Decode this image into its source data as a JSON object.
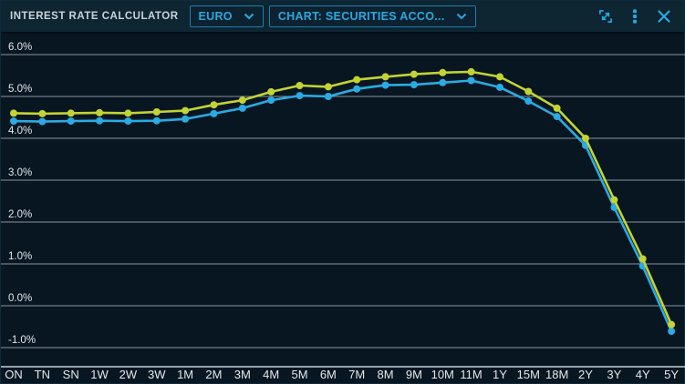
{
  "header": {
    "title": "INTEREST RATE CALCULATOR",
    "currency_dropdown": {
      "value": "EURO",
      "icon": "chevron-down-icon"
    },
    "chart_dropdown": {
      "value": "CHART: SECURITIES ACCO...",
      "icon": "chevron-down-icon"
    },
    "window_icons": [
      "expand-icon",
      "kebab-menu-icon",
      "close-icon"
    ]
  },
  "chart_data": {
    "type": "line",
    "title": "",
    "xlabel": "",
    "ylabel": "",
    "grid": "horizontal",
    "legend": "none",
    "categories": [
      "ON",
      "TN",
      "SN",
      "1W",
      "2W",
      "3W",
      "1M",
      "2M",
      "3M",
      "4M",
      "5M",
      "6M",
      "7M",
      "8M",
      "9M",
      "10M",
      "11M",
      "1Y",
      "15M",
      "18M",
      "2Y",
      "3Y",
      "4Y",
      "5Y"
    ],
    "yticks": {
      "values": [
        6.0,
        5.0,
        4.0,
        3.0,
        2.0,
        1.0,
        0.0,
        -1.0
      ],
      "labels": [
        "6.0%",
        "5.0%",
        "4.0%",
        "3.0%",
        "2.0%",
        "1.0%",
        "0.0%",
        "-1.0%"
      ]
    },
    "ylim": [
      -1.45,
      6.55
    ],
    "series": [
      {
        "name": "yellow-series",
        "color": "#c3d334",
        "values": [
          4.6,
          4.59,
          4.6,
          4.61,
          4.6,
          4.63,
          4.66,
          4.8,
          4.91,
          5.11,
          5.26,
          5.23,
          5.4,
          5.47,
          5.53,
          5.57,
          5.59,
          5.47,
          5.12,
          4.72,
          4.0,
          2.53,
          1.12,
          -0.45
        ]
      },
      {
        "name": "cyan-series",
        "color": "#2aabe2",
        "values": [
          4.41,
          4.4,
          4.41,
          4.42,
          4.41,
          4.42,
          4.46,
          4.59,
          4.72,
          4.91,
          5.02,
          5.0,
          5.18,
          5.27,
          5.28,
          5.33,
          5.38,
          5.22,
          4.89,
          4.52,
          3.83,
          2.35,
          0.95,
          -0.61
        ]
      }
    ],
    "colors": {
      "background": "#081622",
      "header_background": "#0e2532",
      "gridline": "#a8b4bc",
      "axis_line": "#c6d0d6",
      "tick_label": "#e2e8ec",
      "accent_cyan": "#2aa9e0"
    }
  }
}
